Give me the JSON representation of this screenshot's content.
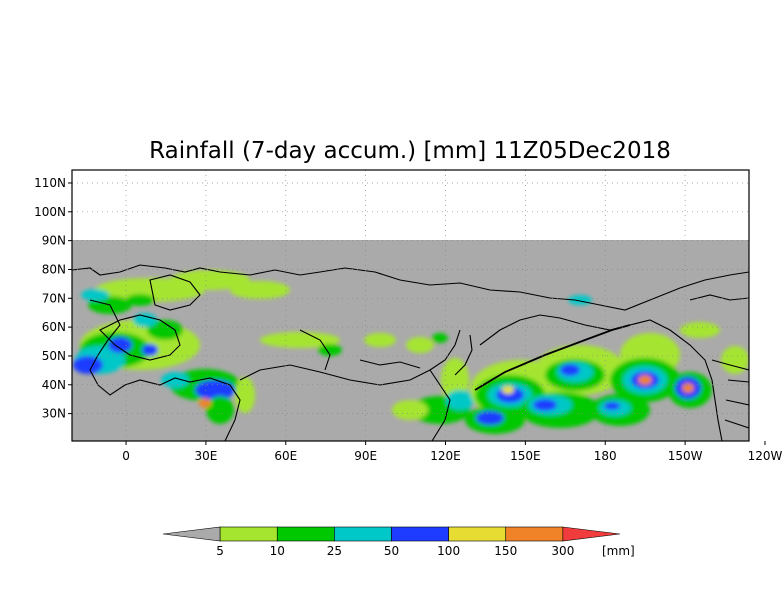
{
  "title": "Rainfall (7-day accum.) [mm] 11Z05Dec2018",
  "map": {
    "lat_ticks": [
      "110N",
      "100N",
      "90N",
      "80N",
      "70N",
      "60N",
      "50N",
      "40N",
      "30N"
    ],
    "lon_ticks": [
      "0",
      "30E",
      "60E",
      "90E",
      "120E",
      "150E",
      "180",
      "150W",
      "120W"
    ],
    "missing_color": "#aaaaaa",
    "coastline_color": "#000000",
    "gridline_style": "dotted"
  },
  "colorbar": {
    "unit": "[mm]",
    "bounds": [
      "5",
      "10",
      "25",
      "50",
      "100",
      "150",
      "300"
    ],
    "colors": [
      "#aaaaaa",
      "#a5e530",
      "#00c800",
      "#00c8c8",
      "#1e3cff",
      "#e6dc32",
      "#f08228",
      "#f03c3c"
    ]
  }
}
